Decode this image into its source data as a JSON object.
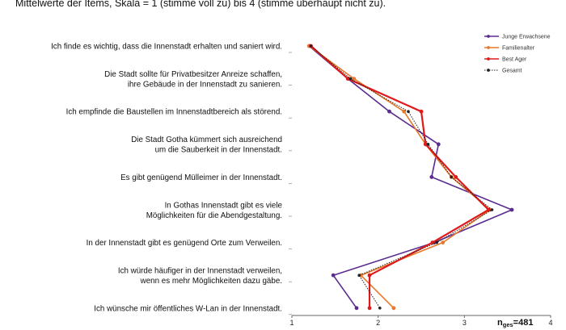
{
  "heading": "Mittelwerte der Items, Skala = 1 (stimme voll zu) bis 4 (stimme überhaupt nicht zu).",
  "sample_size": {
    "prefix": "n",
    "subscript": "ges",
    "value": "=481"
  },
  "chart_data": {
    "type": "line",
    "orientation": "horizontal-profile",
    "xlim": [
      1,
      4
    ],
    "x_ticks": [
      "1",
      "2",
      "3",
      "4"
    ],
    "grid": false,
    "legend_position": "top-right",
    "categories": [
      [
        "Ich finde es wichtig, dass die Innenstadt erhalten und saniert wird."
      ],
      [
        "Die Stadt sollte für Privatbesitzer Anreize schaffen,",
        "ihre Gebäude in der Innenstadt zu sanieren."
      ],
      [
        "Ich empfinde die Baustellen im Innenstadtbereich als störend."
      ],
      [
        "Die Stadt Gotha kümmert sich ausreichend",
        "um die Sauberkeit in der Innenstadt."
      ],
      [
        "Es gibt genügend Mülleimer in der Innenstadt."
      ],
      [
        "In Gothas Innenstadt gibt es viele",
        "Möglichkeiten für die Abendgestaltung."
      ],
      [
        "In der Innenstadt gibt es genügend Orte zum Verweilen."
      ],
      [
        "Ich würde häufiger in der Innenstadt verweilen,",
        "wenn es mehr Möglichkeiten dazu gäbe."
      ],
      [
        "Ich wünsche mir öffentliches W-Lan in der Innenstadt."
      ]
    ],
    "series": [
      {
        "name": "Junge Erwachsene",
        "color": "#5b2c8f",
        "style": "solid",
        "values": [
          1.2,
          1.65,
          2.13,
          2.7,
          2.62,
          3.55,
          2.65,
          1.48,
          1.75
        ]
      },
      {
        "name": "Familienalter",
        "color": "#e8782a",
        "style": "solid",
        "values": [
          1.2,
          1.72,
          2.3,
          2.55,
          2.85,
          3.3,
          2.75,
          1.8,
          2.18
        ]
      },
      {
        "name": "Best Ager",
        "color": "#e01a1a",
        "style": "solid",
        "values": [
          1.22,
          1.65,
          2.5,
          2.55,
          2.9,
          3.28,
          2.63,
          1.9,
          1.9
        ]
      },
      {
        "name": "Gesamt",
        "color": "#222222",
        "style": "dotted",
        "values": [
          1.22,
          1.68,
          2.35,
          2.58,
          2.85,
          3.32,
          2.68,
          1.78,
          2.02
        ]
      }
    ]
  }
}
